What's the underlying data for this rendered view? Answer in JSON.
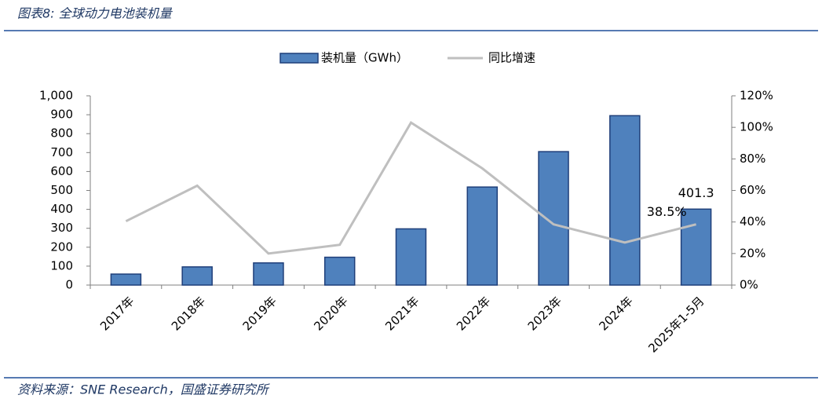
{
  "chart_data": {
    "type": "bar_line",
    "title": "图表8:  全球动力电池装机量",
    "source": "资料来源：SNE Research，国盛证券研究所",
    "categories": [
      "2017年",
      "2018年",
      "2019年",
      "2020年",
      "2021年",
      "2022年",
      "2023年",
      "2024年",
      "2025年1-5月"
    ],
    "series": [
      {
        "name": "装机量（GWh）",
        "type": "bar",
        "color": "#4f81bd",
        "values": [
          58,
          96,
          117,
          147,
          297,
          518,
          705,
          895,
          401.3
        ],
        "value_labels": [
          null,
          null,
          null,
          null,
          null,
          null,
          null,
          null,
          "401.3"
        ]
      },
      {
        "name": "同比增速",
        "type": "line",
        "axis": "y2",
        "color": "#bfbfbf",
        "values": [
          40.5,
          63,
          20,
          25.5,
          103,
          74,
          38.5,
          27,
          38.5
        ],
        "value_labels": [
          null,
          null,
          null,
          null,
          null,
          null,
          null,
          null,
          "38.5%"
        ]
      }
    ],
    "ylim": [
      0,
      1000
    ],
    "yticks": [
      0,
      100,
      200,
      300,
      400,
      500,
      600,
      700,
      800,
      900,
      {
        "value": 1000,
        "label": "1,000"
      }
    ],
    "y2lim": [
      0,
      120
    ],
    "y2ticks": [
      {
        "value": 0,
        "label": "0%"
      },
      {
        "value": 20,
        "label": "20%"
      },
      {
        "value": 40,
        "label": "40%"
      },
      {
        "value": 60,
        "label": "60%"
      },
      {
        "value": 80,
        "label": "80%"
      },
      {
        "value": 100,
        "label": "100%"
      },
      {
        "value": 120,
        "label": "120%"
      }
    ],
    "legend": "top"
  }
}
